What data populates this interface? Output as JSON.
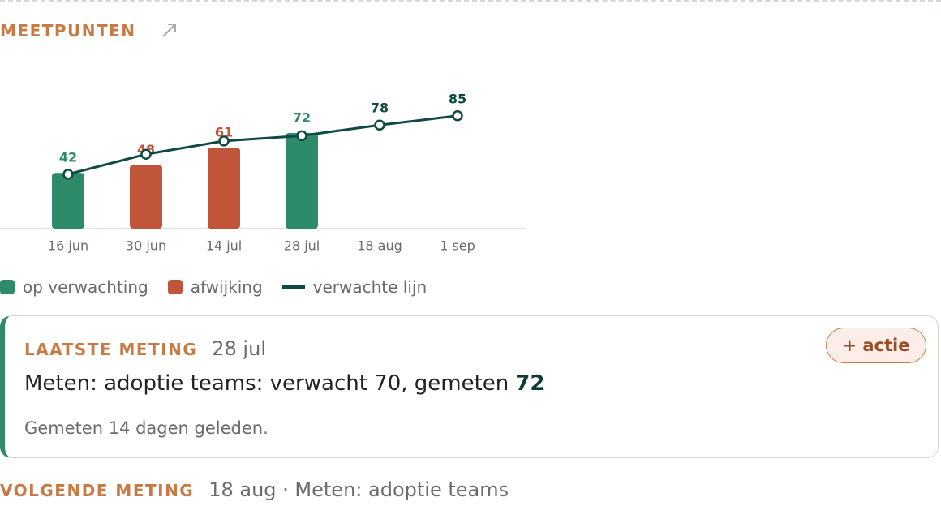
{
  "header": {
    "title": "MEETPUNTEN"
  },
  "chart_data": {
    "type": "bar",
    "categories": [
      "16 jun",
      "30 jun",
      "14 jul",
      "28 jul",
      "18 aug",
      "1 sep"
    ],
    "ylim": [
      0,
      105
    ],
    "series": [
      {
        "name": "op verwachting",
        "type": "bar",
        "color": "#2e8b6a",
        "values": [
          42,
          null,
          null,
          72,
          null,
          null
        ]
      },
      {
        "name": "afwijking",
        "type": "bar",
        "color": "#c0553a",
        "values": [
          null,
          48,
          61,
          null,
          null,
          null
        ]
      },
      {
        "name": "verwachte lijn",
        "type": "line",
        "color": "#0f4a43",
        "values": [
          41,
          56,
          66,
          70,
          78,
          85
        ]
      }
    ]
  },
  "latest": {
    "label": "LAATSTE METING",
    "date": "28 jul",
    "text": "Meten: adoptie teams: verwacht 70, gemeten",
    "value": "72",
    "note": "Gemeten 14 dagen geleden.",
    "button": "+ actie"
  },
  "next": {
    "label": "VOLGENDE METING",
    "text": "18 aug · Meten: adoptie teams"
  }
}
